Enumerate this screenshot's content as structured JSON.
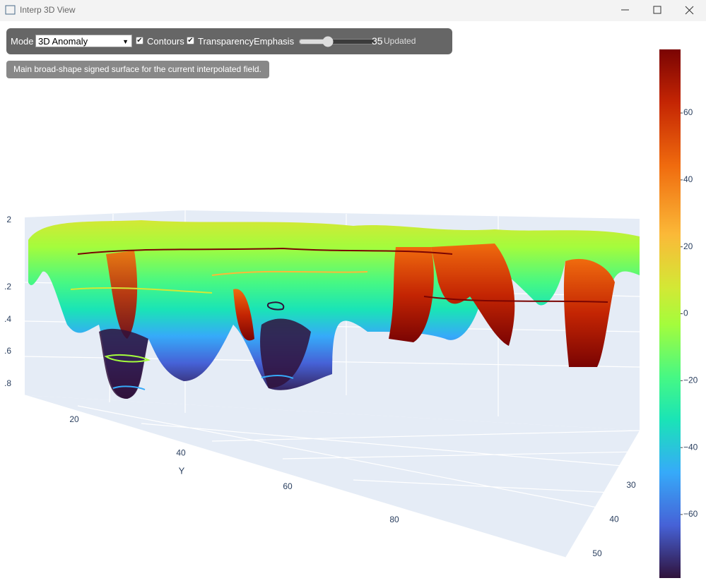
{
  "window": {
    "title": "Interp 3D View"
  },
  "toolbar": {
    "mode_label": "Mode",
    "mode_value": "3D Anomaly",
    "contours_label": "Contours",
    "contours_checked": true,
    "transparency_label": "TransparencyEmphasis",
    "transparency_checked": true,
    "slider_value": 35,
    "status": "Updated"
  },
  "info_text": "Main broad-shape signed surface for the current interpolated field.",
  "plot": {
    "y_axis": {
      "title": "Y",
      "ticks": [
        20,
        40,
        60,
        80
      ]
    },
    "x_axis": {
      "ticks": [
        30,
        40,
        50
      ]
    },
    "z_axis": {
      "tick_labels": [
        "2",
        ".2",
        ".4",
        ".6",
        ".8"
      ]
    },
    "colorbar": {
      "range": [
        -79,
        79
      ],
      "ticks": [
        60,
        40,
        20,
        0,
        {
          "value": -20,
          "label": "−20"
        },
        {
          "value": -40,
          "label": "−40"
        },
        {
          "value": -60,
          "label": "−60"
        }
      ]
    }
  }
}
